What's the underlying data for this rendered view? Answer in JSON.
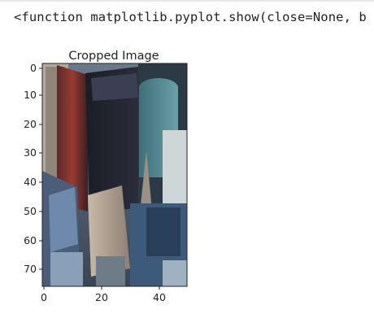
{
  "output": {
    "text": "<function matplotlib.pyplot.show(close=None, b"
  },
  "figure": {
    "title": "Cropped Image",
    "image_subject": "aerial city skyscrapers crop",
    "x_ticks": [
      "0",
      "20",
      "40"
    ],
    "y_ticks": [
      "0",
      "10",
      "20",
      "30",
      "40",
      "50",
      "60",
      "70"
    ]
  },
  "chart_data": {
    "type": "image",
    "title": "Cropped Image",
    "xlim": [
      -0.5,
      49.5
    ],
    "ylim": [
      75.5,
      -0.5
    ],
    "xticks": [
      0,
      20,
      40
    ],
    "yticks": [
      0,
      10,
      20,
      30,
      40,
      50,
      60,
      70
    ]
  }
}
